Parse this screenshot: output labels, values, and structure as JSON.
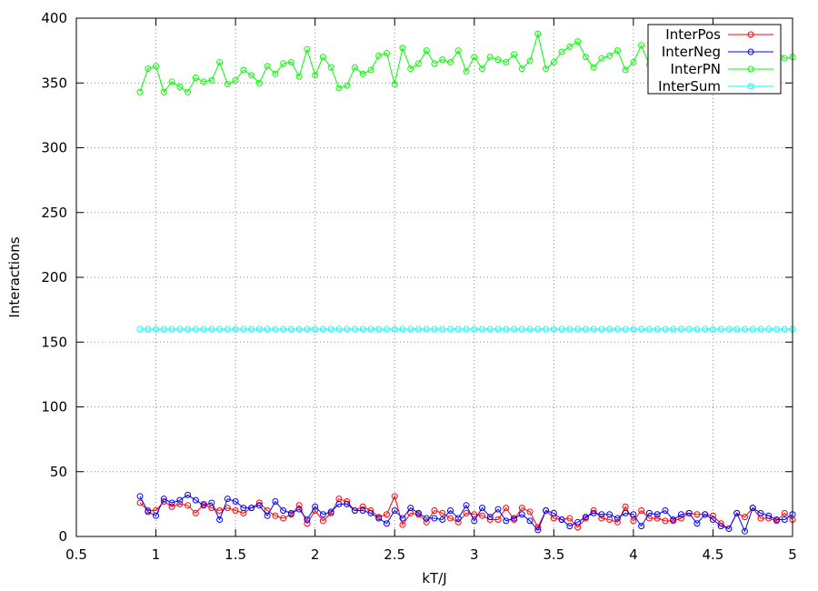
{
  "chart_data": {
    "type": "line",
    "xlabel": "kT/J",
    "ylabel": "Interactions",
    "xlim": [
      0.5,
      5
    ],
    "ylim": [
      0,
      400
    ],
    "x_ticks": [
      "0.5",
      "1",
      "1.5",
      "2",
      "2.5",
      "3",
      "3.5",
      "4",
      "4.5",
      "5"
    ],
    "y_ticks": [
      "0",
      "50",
      "100",
      "150",
      "200",
      "250",
      "300",
      "350",
      "400"
    ],
    "grid": true,
    "legend_position": "top-right",
    "x": [
      0.9,
      0.95,
      1.0,
      1.05,
      1.1,
      1.15,
      1.2,
      1.25,
      1.3,
      1.35,
      1.4,
      1.45,
      1.5,
      1.55,
      1.6,
      1.65,
      1.7,
      1.75,
      1.8,
      1.85,
      1.9,
      1.95,
      2.0,
      2.05,
      2.1,
      2.15,
      2.2,
      2.25,
      2.3,
      2.35,
      2.4,
      2.45,
      2.5,
      2.55,
      2.6,
      2.65,
      2.7,
      2.75,
      2.8,
      2.85,
      2.9,
      2.95,
      3.0,
      3.05,
      3.1,
      3.15,
      3.2,
      3.25,
      3.3,
      3.35,
      3.4,
      3.45,
      3.5,
      3.55,
      3.6,
      3.65,
      3.7,
      3.75,
      3.8,
      3.85,
      3.9,
      3.95,
      4.0,
      4.05,
      4.1,
      4.15,
      4.2,
      4.25,
      4.3,
      4.35,
      4.4,
      4.45,
      4.5,
      4.55,
      4.6,
      4.65,
      4.7,
      4.75,
      4.8,
      4.85,
      4.9,
      4.95,
      5.0
    ],
    "series": [
      {
        "name": "InterPos",
        "color": "#ff0000",
        "values": [
          26,
          20,
          20,
          27,
          23,
          25,
          24,
          18,
          25,
          22,
          20,
          22,
          20,
          18,
          22,
          26,
          20,
          16,
          14,
          17,
          24,
          10,
          20,
          12,
          18,
          29,
          27,
          20,
          23,
          20,
          15,
          17,
          31,
          9,
          18,
          17,
          11,
          20,
          18,
          14,
          11,
          18,
          17,
          16,
          13,
          13,
          22,
          13,
          22,
          19,
          7,
          20,
          14,
          13,
          14,
          7,
          14,
          20,
          14,
          13,
          11,
          23,
          12,
          20,
          14,
          14,
          12,
          12,
          14,
          18,
          17,
          17,
          16,
          10,
          6,
          18,
          15,
          22,
          14,
          14,
          12,
          18,
          13
        ]
      },
      {
        "name": "InterNeg",
        "color": "#0000ff",
        "values": [
          31,
          19,
          16,
          29,
          26,
          28,
          32,
          28,
          24,
          26,
          13,
          29,
          27,
          22,
          22,
          24,
          16,
          27,
          20,
          18,
          21,
          13,
          23,
          17,
          19,
          25,
          25,
          20,
          20,
          18,
          14,
          10,
          20,
          14,
          22,
          18,
          14,
          14,
          13,
          20,
          14,
          24,
          12,
          22,
          15,
          21,
          12,
          14,
          17,
          12,
          5,
          20,
          18,
          13,
          8,
          11,
          15,
          18,
          17,
          17,
          14,
          18,
          17,
          8,
          18,
          17,
          20,
          13,
          17,
          18,
          10,
          17,
          13,
          8,
          6,
          18,
          4,
          22,
          18,
          16,
          13,
          13,
          17
        ]
      },
      {
        "name": "InterPN",
        "color": "#00ff00",
        "values": [
          343,
          361,
          363,
          343,
          351,
          347,
          343,
          354,
          351,
          352,
          366,
          349,
          352,
          360,
          356,
          350,
          363,
          357,
          365,
          366,
          355,
          376,
          356,
          370,
          362,
          346,
          348,
          362,
          357,
          360,
          371,
          373,
          349,
          377,
          361,
          365,
          375,
          365,
          368,
          366,
          375,
          359,
          370,
          361,
          370,
          368,
          366,
          372,
          361,
          367,
          388,
          361,
          366,
          374,
          378,
          382,
          370,
          362,
          369,
          371,
          375,
          360,
          366,
          379,
          364,
          369,
          368,
          375,
          369,
          365,
          373,
          366,
          371,
          383,
          388,
          365,
          381,
          356,
          369,
          370,
          375,
          369,
          370
        ]
      },
      {
        "name": "InterSum",
        "color": "#00ffff",
        "values": [
          160,
          160,
          160,
          160,
          160,
          160,
          160,
          160,
          160,
          160,
          160,
          160,
          160,
          160,
          160,
          160,
          160,
          160,
          160,
          160,
          160,
          160,
          160,
          160,
          160,
          160,
          160,
          160,
          160,
          160,
          160,
          160,
          160,
          160,
          160,
          160,
          160,
          160,
          160,
          160,
          160,
          160,
          160,
          160,
          160,
          160,
          160,
          160,
          160,
          160,
          160,
          160,
          160,
          160,
          160,
          160,
          160,
          160,
          160,
          160,
          160,
          160,
          160,
          160,
          160,
          160,
          160,
          160,
          160,
          160,
          160,
          160,
          160,
          160,
          160,
          160,
          160,
          160,
          160,
          160,
          160,
          160,
          160
        ]
      }
    ]
  }
}
